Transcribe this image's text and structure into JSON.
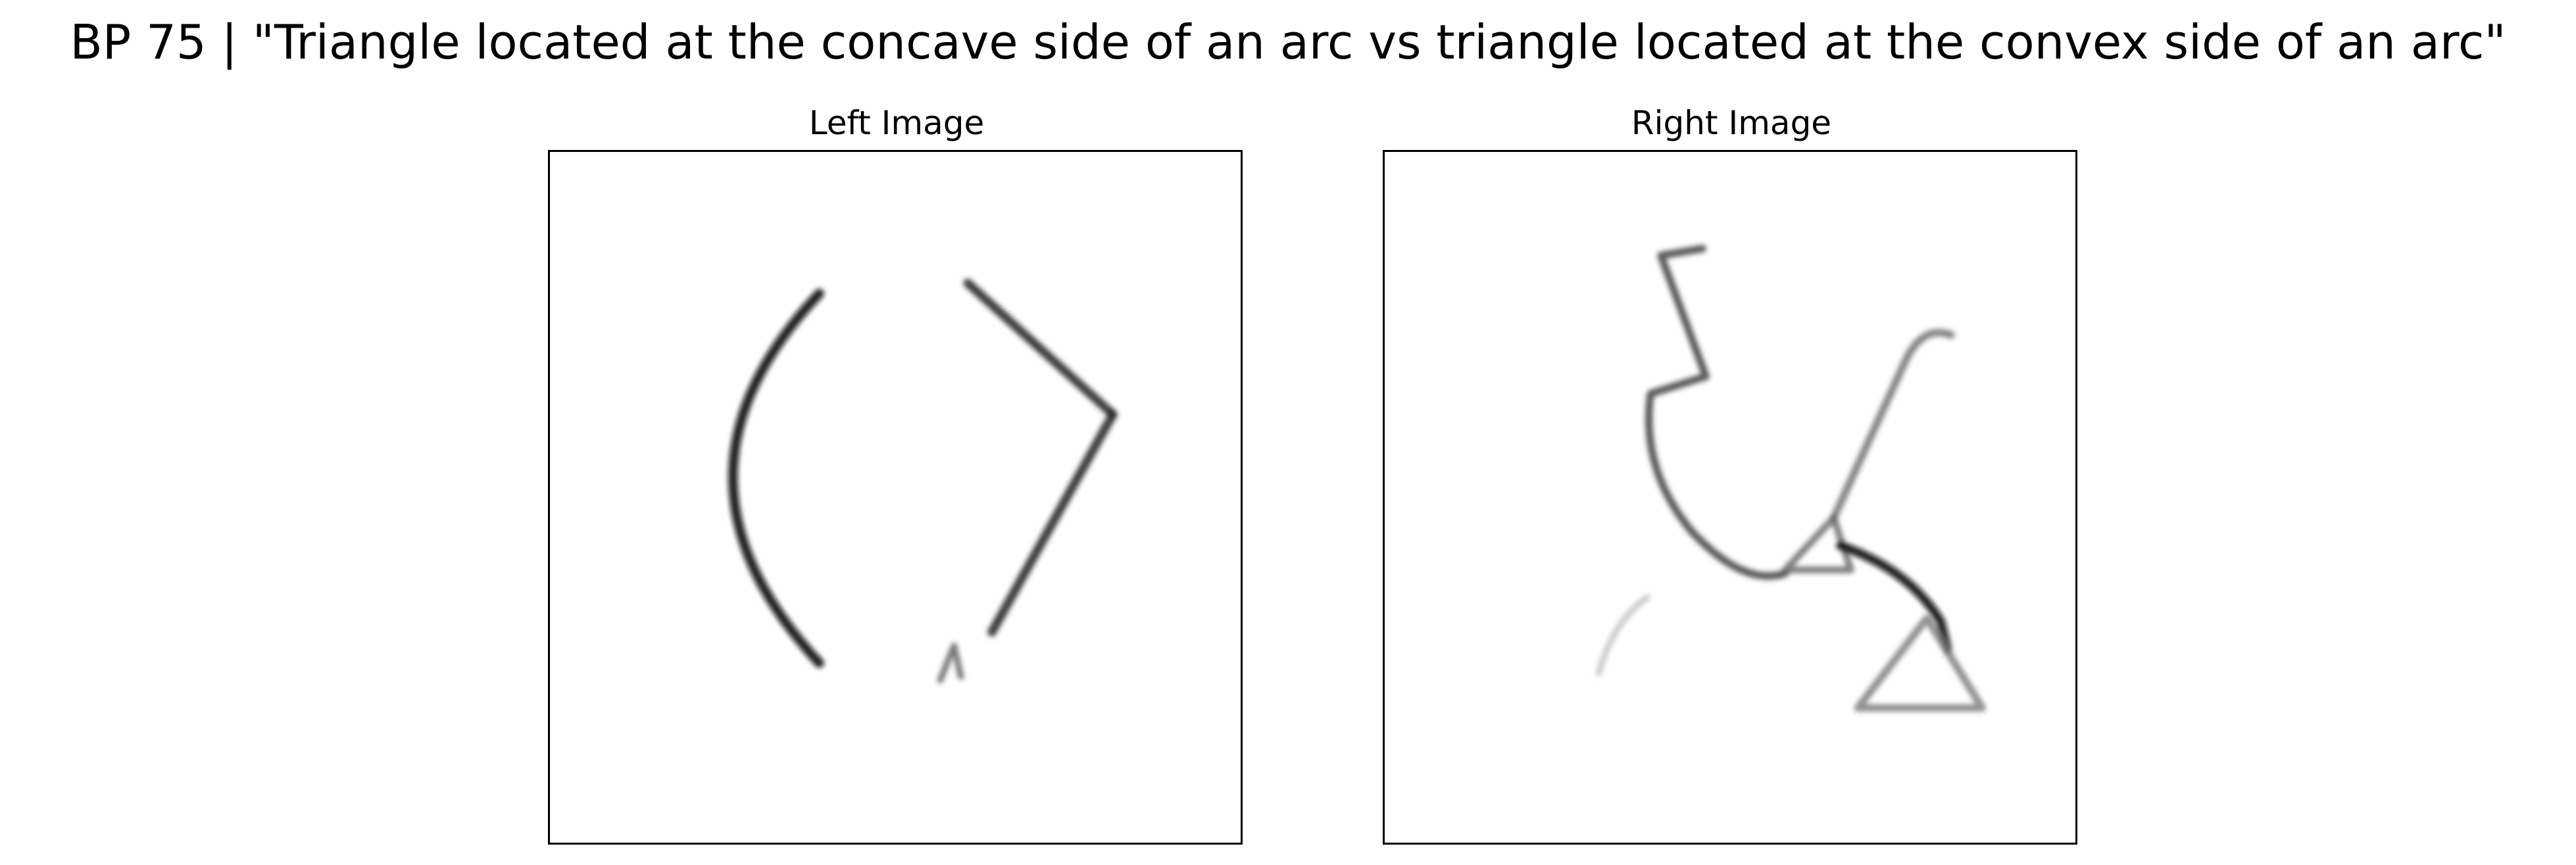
{
  "title": "BP 75 | \"Triangle located at the concave side of an arc vs triangle located at the convex side of an arc\"",
  "panels": {
    "left": {
      "title": "Left Image"
    },
    "right": {
      "title": "Right Image"
    }
  },
  "colors": {
    "background": "#ffffff",
    "stroke": "#000000"
  }
}
